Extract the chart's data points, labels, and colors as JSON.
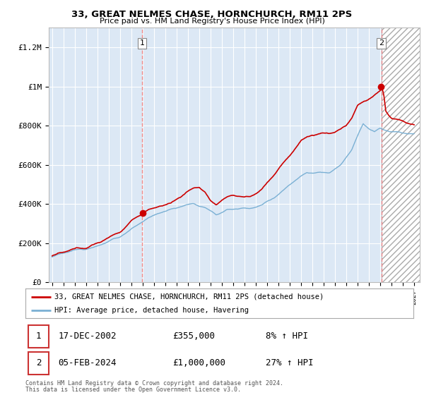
{
  "title": "33, GREAT NELMES CHASE, HORNCHURCH, RM11 2PS",
  "subtitle": "Price paid vs. HM Land Registry's House Price Index (HPI)",
  "ylabel_ticks": [
    "£0",
    "£200K",
    "£400K",
    "£600K",
    "£800K",
    "£1M",
    "£1.2M"
  ],
  "ytick_values": [
    0,
    200000,
    400000,
    600000,
    800000,
    1000000,
    1200000
  ],
  "ylim": [
    0,
    1300000
  ],
  "xlim_start": 1994.7,
  "xlim_end": 2027.5,
  "transaction1_date": "17-DEC-2002",
  "transaction1_price": 355000,
  "transaction1_hpi": "8% ↑ HPI",
  "transaction1_x": 2002.96,
  "transaction2_date": "05-FEB-2024",
  "transaction2_price": 1000000,
  "transaction2_hpi": "27% ↑ HPI",
  "transaction2_x": 2024.1,
  "legend_label1": "33, GREAT NELMES CHASE, HORNCHURCH, RM11 2PS (detached house)",
  "legend_label2": "HPI: Average price, detached house, Havering",
  "footnote1": "Contains HM Land Registry data © Crown copyright and database right 2024.",
  "footnote2": "This data is licensed under the Open Government Licence v3.0.",
  "line_color_red": "#cc0000",
  "line_color_blue": "#7ab0d4",
  "vline_color": "#dd8888",
  "background_color": "#ffffff",
  "plot_bg_color": "#dce8f5",
  "grid_color": "#ffffff",
  "hatch_bg": "#e8e8f0"
}
